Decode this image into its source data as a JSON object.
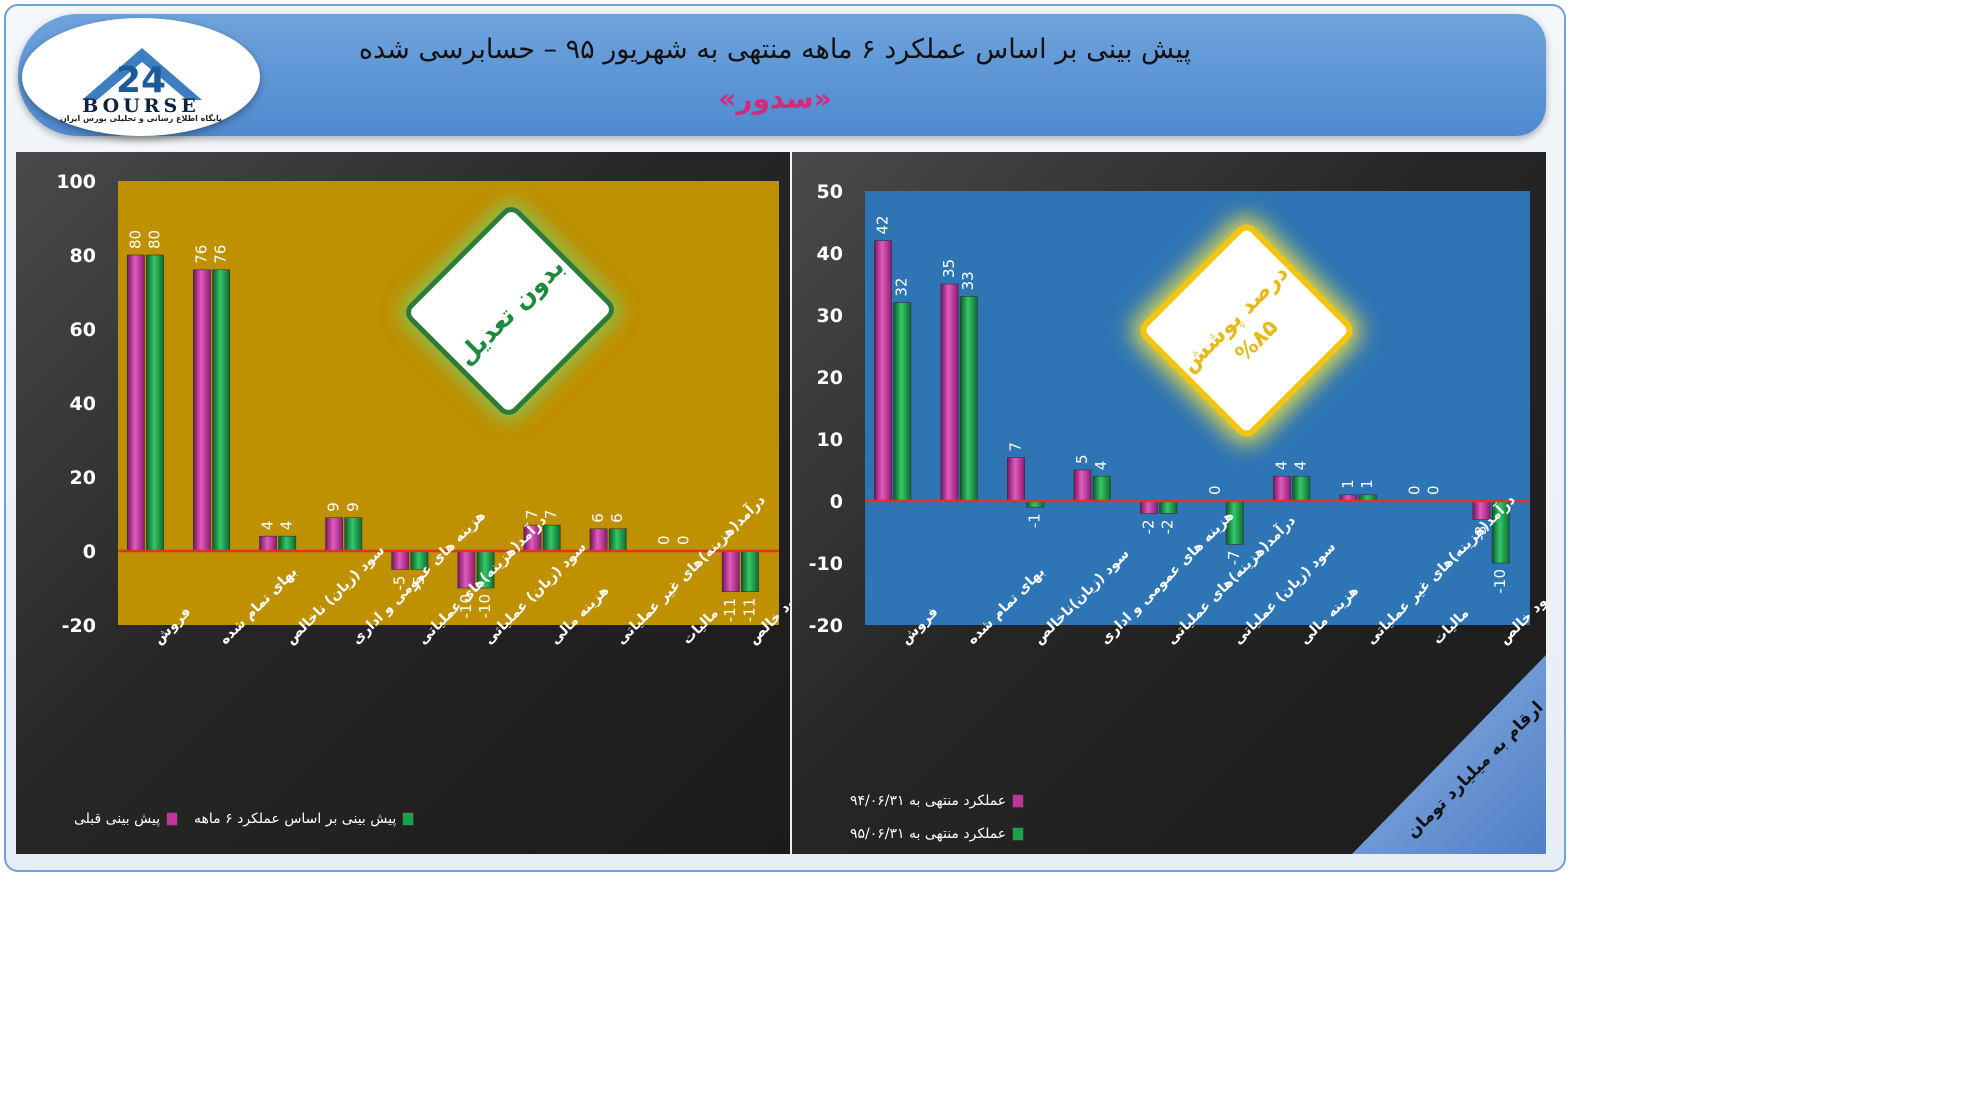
{
  "header": {
    "title": "پیش بینی بر اساس عملکرد ۶ ماهه منتهی به شهریور ۹۵ – حسابرسی شده",
    "subtitle": "«سدور»"
  },
  "logo": {
    "text": "BOURSE",
    "number": "24",
    "tagline": "پایگاه اطلاع رسانی و تحلیلی بورس ایران"
  },
  "colors": {
    "series_a": "#c2349a",
    "series_b": "#18a24a",
    "left_plot_bg": "#bf9000",
    "right_plot_bg": "#2e75b6",
    "zero_line": "#e0322a"
  },
  "badges": {
    "left": "بدون تعدیل",
    "right_line1": "درصد پوشش",
    "right_line2": "%۸۵"
  },
  "units": "ارقام به میلیارد تومان",
  "chart_data": [
    {
      "type": "bar",
      "categories": [
        "فروش",
        "بهای تمام شده",
        "سود (زیان) ناخالص",
        "هزینه های عمومی و اداری",
        "درآمد(هزینه)های عملیاتی",
        "سود (زیان) عملیاتی",
        "هزینه مالی",
        "درآمد(هزینه)های غیر عملیاتی",
        "مالیات",
        "سود خالص"
      ],
      "series": [
        {
          "name": "پیش بینی قبلی",
          "values": [
            80,
            76,
            4,
            9,
            -5,
            -10,
            7,
            6,
            0,
            -11
          ]
        },
        {
          "name": "پیش بینی بر اساس عملکرد ۶ ماهه",
          "values": [
            80,
            76,
            4,
            9,
            -5,
            -10,
            7,
            6,
            0,
            -11
          ]
        }
      ],
      "ylim": [
        -20,
        100
      ],
      "yticks": [
        100,
        80,
        60,
        40,
        20,
        0,
        -20
      ],
      "legend": "bottom"
    },
    {
      "type": "bar",
      "categories": [
        "فروش",
        "بهای تمام شده",
        "سود (زیان)ناخالص",
        "هزینه های عمومی و اداری",
        "درآمد(هزینه)های عملیاتی",
        "سود (زیان) عملیاتی",
        "هزینه مالی",
        "درآمد(هزینه)های غیر عملیاتی",
        "مالیات",
        "سود خالص"
      ],
      "series": [
        {
          "name": "عملکرد منتهی به ۹۴/۰۶/۳۱",
          "values": [
            42,
            35,
            7,
            5,
            -2,
            0,
            4,
            1,
            0,
            -3
          ]
        },
        {
          "name": "عملکرد منتهی به ۹۵/۰۶/۳۱",
          "values": [
            32,
            33,
            -1,
            4,
            -2,
            -7,
            4,
            1,
            0,
            -10
          ]
        }
      ],
      "ylim": [
        -20,
        50
      ],
      "yticks": [
        50,
        40,
        30,
        20,
        10,
        0,
        -10,
        -20
      ],
      "legend": "bottom-left"
    }
  ]
}
